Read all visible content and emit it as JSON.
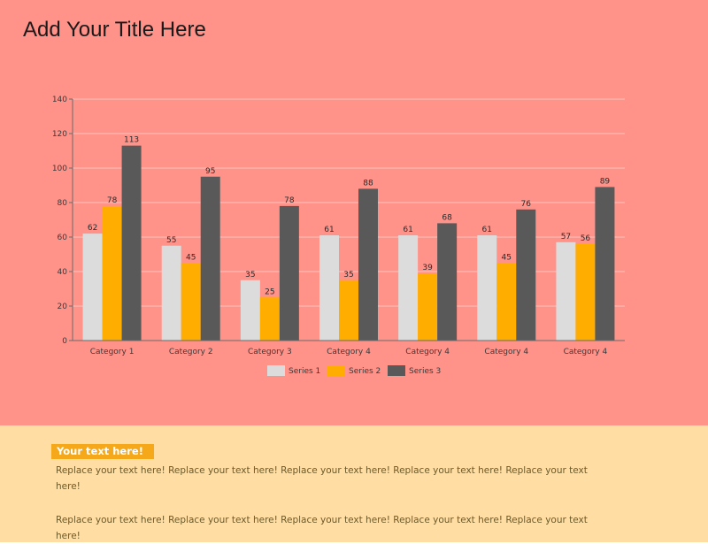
{
  "page": {
    "title": "Add Your Title Here",
    "badge": "Your text here!",
    "paragraphs": [
      "Replace your text here!  Replace your text here!  Replace your text here!  Replace your text here!  Replace your text here!",
      "Replace your text here!  Replace your text here!  Replace your text here!  Replace your text here!  Replace your text here!"
    ]
  },
  "colors": {
    "top_background": "#ff9289",
    "bottom_background": "#ffdda3",
    "series1": "#dcdcdc",
    "series2": "#ffae00",
    "series3": "#595959"
  },
  "chart_data": {
    "type": "bar",
    "categories": [
      "Category 1",
      "Category 2",
      "Category 3",
      "Category 4",
      "Category 4",
      "Category 4",
      "Category 4"
    ],
    "series": [
      {
        "name": "Series 1",
        "color": "#dcdcdc",
        "values": [
          62,
          55,
          35,
          61,
          61,
          61,
          57
        ]
      },
      {
        "name": "Series 2",
        "color": "#ffae00",
        "values": [
          78,
          45,
          25,
          35,
          39,
          45,
          56
        ]
      },
      {
        "name": "Series 3",
        "color": "#595959",
        "values": [
          113,
          95,
          78,
          88,
          68,
          76,
          89
        ]
      }
    ],
    "ylim": [
      0,
      140
    ],
    "yticks": [
      0,
      20,
      40,
      60,
      80,
      100,
      120,
      140
    ],
    "grid": true,
    "data_labels": true,
    "legend": "bottom"
  }
}
